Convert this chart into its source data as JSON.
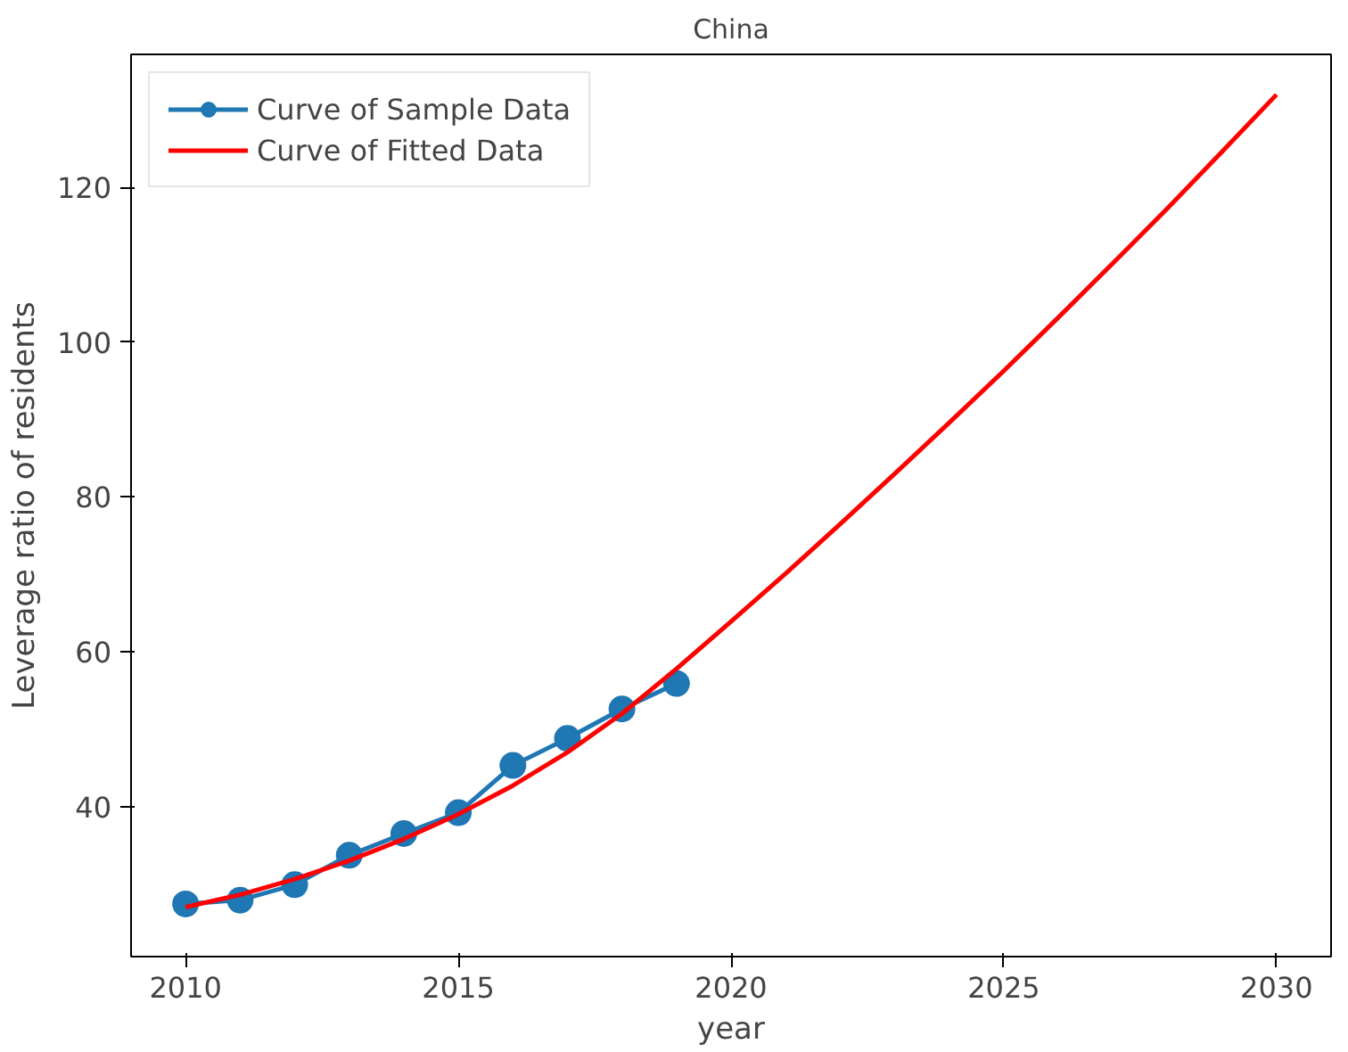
{
  "chart_data": {
    "type": "line",
    "title": "China",
    "xlabel": "year",
    "ylabel": "Leverage ratio of residents",
    "xlim": [
      2009,
      2031
    ],
    "xticks": [
      2010,
      2015,
      2020,
      2025,
      2030
    ],
    "ylim": [
      20.6,
      137.2
    ],
    "yticks": [
      40,
      60,
      80,
      100,
      120
    ],
    "grid": false,
    "legend": "top left",
    "series": [
      {
        "name": "Curve of Sample Data",
        "color": "#1f77b4",
        "marker": "circle",
        "x": [
          2010,
          2011,
          2012,
          2013,
          2014,
          2015,
          2016,
          2017,
          2018,
          2019
        ],
        "values": [
          27.4,
          27.9,
          29.9,
          33.7,
          36.5,
          39.2,
          45.3,
          48.8,
          52.6,
          55.9
        ]
      },
      {
        "name": "Curve of Fitted Data",
        "color": "#ff0000",
        "marker": "none",
        "x": [
          2010,
          2011,
          2012,
          2013,
          2014,
          2015,
          2016,
          2017,
          2018,
          2019,
          2020,
          2021,
          2022,
          2023,
          2024,
          2025,
          2026,
          2027,
          2028,
          2029,
          2030
        ],
        "values": [
          27,
          28.6,
          30.6,
          33,
          35.8,
          39,
          42.7,
          47,
          52,
          57.8,
          63.9,
          70.1,
          76.5,
          83,
          89.6,
          96.3,
          103.2,
          110.2,
          117.3,
          124.6,
          132
        ]
      }
    ]
  }
}
